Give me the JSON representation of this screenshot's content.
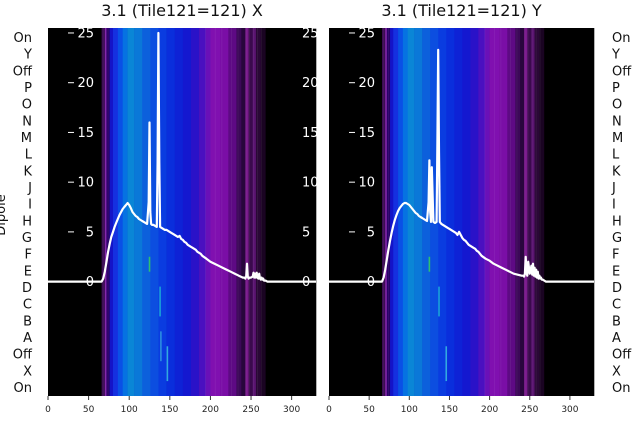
{
  "chart_data": [
    {
      "type": "line",
      "title": "3.1 (Tile121=121) X",
      "ylabel": "Dipole",
      "xlim": [
        0,
        330
      ],
      "ylim": [
        -11.5,
        25.5
      ],
      "x_ticks": [
        0,
        50,
        100,
        150,
        200,
        250,
        300
      ],
      "y_ticks": [
        0,
        5,
        10,
        15,
        20,
        25
      ],
      "row_labels": [
        "On",
        "X",
        "Off",
        "A",
        "B",
        "C",
        "D",
        "E",
        "F",
        "G",
        "H",
        "I",
        "J",
        "K",
        "L",
        "M",
        "N",
        "O",
        "P",
        "Off",
        "Y",
        "On"
      ],
      "series": [
        {
          "x": [
            0,
            66,
            68,
            70,
            72,
            74,
            76,
            78,
            80,
            82,
            84,
            86,
            88,
            90,
            92,
            94,
            96,
            98,
            100,
            102,
            104,
            106,
            108,
            110,
            112,
            114,
            116,
            118,
            120,
            122,
            124,
            125,
            126,
            127,
            128,
            130,
            132,
            134,
            135,
            136,
            137,
            138,
            140,
            142,
            144,
            146,
            148,
            150,
            152,
            154,
            156,
            158,
            160,
            162,
            164,
            166,
            168,
            170,
            172,
            174,
            176,
            178,
            180,
            182,
            184,
            186,
            188,
            190,
            195,
            200,
            205,
            210,
            215,
            220,
            225,
            230,
            235,
            240,
            242,
            243,
            244,
            245,
            246,
            247,
            248,
            250,
            252,
            253,
            254,
            255,
            256,
            257,
            258,
            259,
            260,
            261,
            262,
            263,
            264,
            265,
            266,
            268,
            270,
            280,
            290,
            300,
            310,
            320,
            330
          ],
          "y": [
            0,
            0,
            0.3,
            1.0,
            2.0,
            3.0,
            3.8,
            4.5,
            5.0,
            5.5,
            5.9,
            6.3,
            6.7,
            7.0,
            7.3,
            7.5,
            7.7,
            7.9,
            7.7,
            7.4,
            7.0,
            6.8,
            6.6,
            6.5,
            6.3,
            6.2,
            6.1,
            6.0,
            5.9,
            5.8,
            8.0,
            16.0,
            7.0,
            5.8,
            5.7,
            5.7,
            5.6,
            5.5,
            12.0,
            25.0,
            12.0,
            5.5,
            5.4,
            5.3,
            5.2,
            5.2,
            5.1,
            5.0,
            4.9,
            4.8,
            4.7,
            4.6,
            4.5,
            4.6,
            4.3,
            4.2,
            4.0,
            3.9,
            3.7,
            3.6,
            3.5,
            3.4,
            3.3,
            3.2,
            3.0,
            2.9,
            2.8,
            2.6,
            2.3,
            2.0,
            1.8,
            1.6,
            1.4,
            1.2,
            1.0,
            0.8,
            0.6,
            0.4,
            0.4,
            0.3,
            0.5,
            1.8,
            0.5,
            0.3,
            0.4,
            0.4,
            0.5,
            0.9,
            0.4,
            0.8,
            0.4,
            0.9,
            0.4,
            0.3,
            0.8,
            0.3,
            0.2,
            0.4,
            0.2,
            0.3,
            0.1,
            0.1,
            0,
            0,
            0,
            0,
            0,
            0,
            0
          ]
        }
      ],
      "spectrogram_bands": [
        {
          "x0": 0,
          "x1": 66,
          "color": "#000000"
        },
        {
          "x0": 66,
          "x1": 70,
          "color": "#3a0a52"
        },
        {
          "x0": 70,
          "x1": 72,
          "color": "#7f1fa6"
        },
        {
          "x0": 72,
          "x1": 76,
          "color": "#2a006a"
        },
        {
          "x0": 76,
          "x1": 80,
          "color": "#1414c8"
        },
        {
          "x0": 80,
          "x1": 86,
          "color": "#1530e0"
        },
        {
          "x0": 86,
          "x1": 92,
          "color": "#0a50e6"
        },
        {
          "x0": 92,
          "x1": 98,
          "color": "#0672e2"
        },
        {
          "x0": 98,
          "x1": 106,
          "color": "#0a86d6"
        },
        {
          "x0": 106,
          "x1": 116,
          "color": "#0a78d8"
        },
        {
          "x0": 116,
          "x1": 126,
          "color": "#0c60dc"
        },
        {
          "x0": 126,
          "x1": 136,
          "color": "#0c4ee0"
        },
        {
          "x0": 136,
          "x1": 146,
          "color": "#0a3ce0"
        },
        {
          "x0": 146,
          "x1": 156,
          "color": "#0a2edc"
        },
        {
          "x0": 156,
          "x1": 166,
          "color": "#0e22d6"
        },
        {
          "x0": 166,
          "x1": 176,
          "color": "#1418d0"
        },
        {
          "x0": 176,
          "x1": 186,
          "color": "#2a12c8"
        },
        {
          "x0": 186,
          "x1": 194,
          "color": "#4a10c0"
        },
        {
          "x0": 194,
          "x1": 200,
          "color": "#6a10b8"
        },
        {
          "x0": 200,
          "x1": 212,
          "color": "#8010b0"
        },
        {
          "x0": 212,
          "x1": 222,
          "color": "#7a0ea6"
        },
        {
          "x0": 222,
          "x1": 232,
          "color": "#5e0a84"
        },
        {
          "x0": 232,
          "x1": 238,
          "color": "#3c0858"
        },
        {
          "x0": 238,
          "x1": 243,
          "color": "#28063c"
        },
        {
          "x0": 243,
          "x1": 247,
          "color": "#7a1a8c"
        },
        {
          "x0": 247,
          "x1": 252,
          "color": "#3a0a4c"
        },
        {
          "x0": 252,
          "x1": 256,
          "color": "#5a1470"
        },
        {
          "x0": 256,
          "x1": 262,
          "color": "#2a0836"
        },
        {
          "x0": 262,
          "x1": 268,
          "color": "#1a0422"
        },
        {
          "x0": 268,
          "x1": 330,
          "color": "#000000"
        }
      ],
      "spikes": [
        {
          "x": 125,
          "y0": 1,
          "y1": 2.5,
          "color": "#2fbf71"
        },
        {
          "x": 138,
          "y0": -0.5,
          "y1": -3.5,
          "color": "#19a3d8"
        },
        {
          "x": 139,
          "y0": -5,
          "y1": -8,
          "color": "#2c8ee0"
        },
        {
          "x": 147,
          "y0": -6.5,
          "y1": -10,
          "color": "#31a8e0"
        }
      ]
    },
    {
      "type": "line",
      "title": "3.1 (Tile121=121) Y",
      "ylabel": "",
      "xlim": [
        0,
        330
      ],
      "ylim": [
        -11.5,
        25.5
      ],
      "x_ticks": [
        0,
        50,
        100,
        150,
        200,
        250,
        300
      ],
      "y_ticks": [
        0,
        5,
        10,
        15,
        20,
        25
      ],
      "row_labels": [
        "On",
        "X",
        "Off",
        "A",
        "B",
        "C",
        "D",
        "E",
        "F",
        "G",
        "H",
        "I",
        "J",
        "K",
        "L",
        "M",
        "N",
        "O",
        "P",
        "Off",
        "Y",
        "On"
      ],
      "series": [
        {
          "x": [
            0,
            66,
            68,
            70,
            72,
            74,
            76,
            78,
            80,
            82,
            84,
            86,
            88,
            90,
            92,
            94,
            96,
            98,
            100,
            102,
            104,
            106,
            108,
            110,
            112,
            114,
            116,
            118,
            120,
            122,
            124,
            125,
            126,
            127,
            128,
            130,
            132,
            134,
            135,
            136,
            137,
            138,
            140,
            142,
            144,
            146,
            148,
            150,
            152,
            154,
            156,
            158,
            160,
            162,
            164,
            166,
            168,
            170,
            172,
            174,
            176,
            178,
            180,
            182,
            184,
            186,
            188,
            190,
            195,
            200,
            205,
            210,
            215,
            220,
            225,
            230,
            235,
            240,
            242,
            243,
            244,
            245,
            246,
            247,
            248,
            250,
            252,
            253,
            254,
            255,
            256,
            257,
            258,
            259,
            260,
            261,
            262,
            263,
            264,
            265,
            266,
            268,
            270,
            280,
            290,
            300,
            310,
            320,
            330
          ],
          "y": [
            0,
            0,
            0.4,
            1.2,
            2.2,
            3.2,
            4.1,
            4.9,
            5.6,
            6.2,
            6.7,
            7.1,
            7.4,
            7.6,
            7.8,
            7.9,
            7.9,
            7.8,
            7.7,
            7.5,
            7.3,
            7.1,
            6.9,
            6.8,
            6.6,
            6.5,
            6.4,
            6.3,
            6.2,
            6.1,
            8.0,
            12.2,
            7.0,
            6.0,
            11.5,
            6.0,
            5.9,
            6.0,
            14.0,
            23.3,
            13.0,
            6.0,
            5.8,
            5.7,
            5.6,
            5.5,
            5.4,
            5.3,
            5.2,
            5.1,
            5.0,
            4.9,
            4.7,
            5.0,
            4.7,
            4.4,
            4.2,
            4.1,
            3.9,
            3.7,
            3.6,
            3.5,
            3.4,
            3.3,
            3.1,
            3.0,
            2.8,
            2.6,
            2.3,
            2.1,
            1.8,
            1.6,
            1.4,
            1.2,
            1.0,
            0.8,
            0.7,
            0.6,
            0.6,
            0.5,
            0.8,
            2.5,
            0.9,
            0.6,
            2.0,
            0.8,
            1.6,
            0.7,
            1.8,
            0.6,
            1.4,
            0.5,
            1.2,
            0.4,
            1.0,
            0.3,
            0.6,
            0.3,
            0.4,
            0.2,
            0.2,
            0.1,
            0,
            0,
            0,
            0,
            0,
            0,
            0
          ]
        }
      ],
      "spectrogram_bands": [
        {
          "x0": 0,
          "x1": 66,
          "color": "#000000"
        },
        {
          "x0": 66,
          "x1": 70,
          "color": "#3a0a52"
        },
        {
          "x0": 70,
          "x1": 72,
          "color": "#7f1fa6"
        },
        {
          "x0": 72,
          "x1": 76,
          "color": "#2a006a"
        },
        {
          "x0": 76,
          "x1": 80,
          "color": "#1414c8"
        },
        {
          "x0": 80,
          "x1": 86,
          "color": "#1530e0"
        },
        {
          "x0": 86,
          "x1": 92,
          "color": "#0a50e6"
        },
        {
          "x0": 92,
          "x1": 98,
          "color": "#0672e2"
        },
        {
          "x0": 98,
          "x1": 106,
          "color": "#0a86d6"
        },
        {
          "x0": 106,
          "x1": 116,
          "color": "#0a78d8"
        },
        {
          "x0": 116,
          "x1": 126,
          "color": "#0c60dc"
        },
        {
          "x0": 126,
          "x1": 136,
          "color": "#0c4ee0"
        },
        {
          "x0": 136,
          "x1": 146,
          "color": "#0a3ce0"
        },
        {
          "x0": 146,
          "x1": 156,
          "color": "#0a2edc"
        },
        {
          "x0": 156,
          "x1": 166,
          "color": "#0e22d6"
        },
        {
          "x0": 166,
          "x1": 176,
          "color": "#1418d0"
        },
        {
          "x0": 176,
          "x1": 186,
          "color": "#2a12c8"
        },
        {
          "x0": 186,
          "x1": 194,
          "color": "#4a10c0"
        },
        {
          "x0": 194,
          "x1": 200,
          "color": "#6a10b8"
        },
        {
          "x0": 200,
          "x1": 212,
          "color": "#8010b0"
        },
        {
          "x0": 212,
          "x1": 222,
          "color": "#7a0ea6"
        },
        {
          "x0": 222,
          "x1": 232,
          "color": "#5e0a84"
        },
        {
          "x0": 232,
          "x1": 238,
          "color": "#3c0858"
        },
        {
          "x0": 238,
          "x1": 243,
          "color": "#28063c"
        },
        {
          "x0": 243,
          "x1": 247,
          "color": "#7a1a8c"
        },
        {
          "x0": 247,
          "x1": 252,
          "color": "#3a0a4c"
        },
        {
          "x0": 252,
          "x1": 256,
          "color": "#5a1470"
        },
        {
          "x0": 256,
          "x1": 262,
          "color": "#2a0836"
        },
        {
          "x0": 262,
          "x1": 268,
          "color": "#1a0422"
        },
        {
          "x0": 268,
          "x1": 330,
          "color": "#000000"
        }
      ],
      "spikes": [
        {
          "x": 125,
          "y0": 1,
          "y1": 2.5,
          "color": "#2fbf71"
        },
        {
          "x": 137,
          "y0": -0.5,
          "y1": -3.5,
          "color": "#19a3d8"
        },
        {
          "x": 146,
          "y0": -6.5,
          "y1": -10,
          "color": "#31a8e0"
        }
      ]
    }
  ]
}
